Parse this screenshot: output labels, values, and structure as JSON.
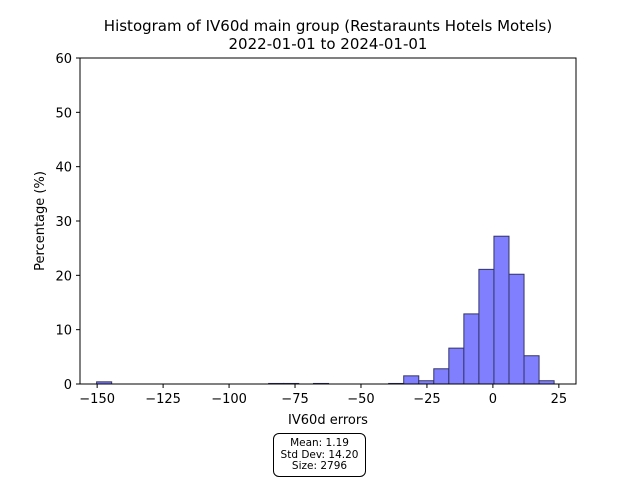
{
  "chart_data": {
    "type": "bar",
    "title": "Histogram of IV60d main group (Restaraunts Hotels Motels)",
    "subtitle": "2022-01-01 to 2024-01-01",
    "xlabel": "IV60d errors",
    "ylabel": "Percentage (%)",
    "xlim": [
      -156.5,
      31.5
    ],
    "ylim": [
      0,
      60
    ],
    "xticks": [
      -150,
      -125,
      -100,
      -75,
      -50,
      -25,
      0,
      25
    ],
    "xtick_labels": [
      "−150",
      "−125",
      "−100",
      "−75",
      "−50",
      "−25",
      "0",
      "25"
    ],
    "yticks": [
      0,
      10,
      20,
      30,
      40,
      50,
      60
    ],
    "ytick_labels": [
      "0",
      "10",
      "20",
      "30",
      "40",
      "50",
      "60"
    ],
    "bar_color": "#8080ff",
    "edge_color": "#333366",
    "bins": [
      {
        "x0": -150.2,
        "x1": -144.5,
        "value": 0.4
      },
      {
        "x0": -85.0,
        "x1": -79.3,
        "value": 0.1
      },
      {
        "x0": -79.3,
        "x1": -73.6,
        "value": 0.1
      },
      {
        "x0": -68.0,
        "x1": -62.3,
        "value": 0.1
      },
      {
        "x0": -39.5,
        "x1": -33.8,
        "value": 0.1
      },
      {
        "x0": -33.8,
        "x1": -28.1,
        "value": 1.5
      },
      {
        "x0": -28.1,
        "x1": -22.4,
        "value": 0.6
      },
      {
        "x0": -22.4,
        "x1": -16.7,
        "value": 2.8
      },
      {
        "x0": -16.7,
        "x1": -11.0,
        "value": 6.6
      },
      {
        "x0": -11.0,
        "x1": -5.3,
        "value": 12.9
      },
      {
        "x0": -5.3,
        "x1": 0.4,
        "value": 21.1
      },
      {
        "x0": 0.4,
        "x1": 6.1,
        "value": 27.2
      },
      {
        "x0": 6.1,
        "x1": 11.8,
        "value": 20.2
      },
      {
        "x0": 11.8,
        "x1": 17.5,
        "value": 5.2
      },
      {
        "x0": 17.5,
        "x1": 23.2,
        "value": 0.6
      }
    ],
    "stats": {
      "mean": "Mean: 1.19",
      "std": "Std Dev: 14.20",
      "size": "Size: 2796"
    }
  }
}
